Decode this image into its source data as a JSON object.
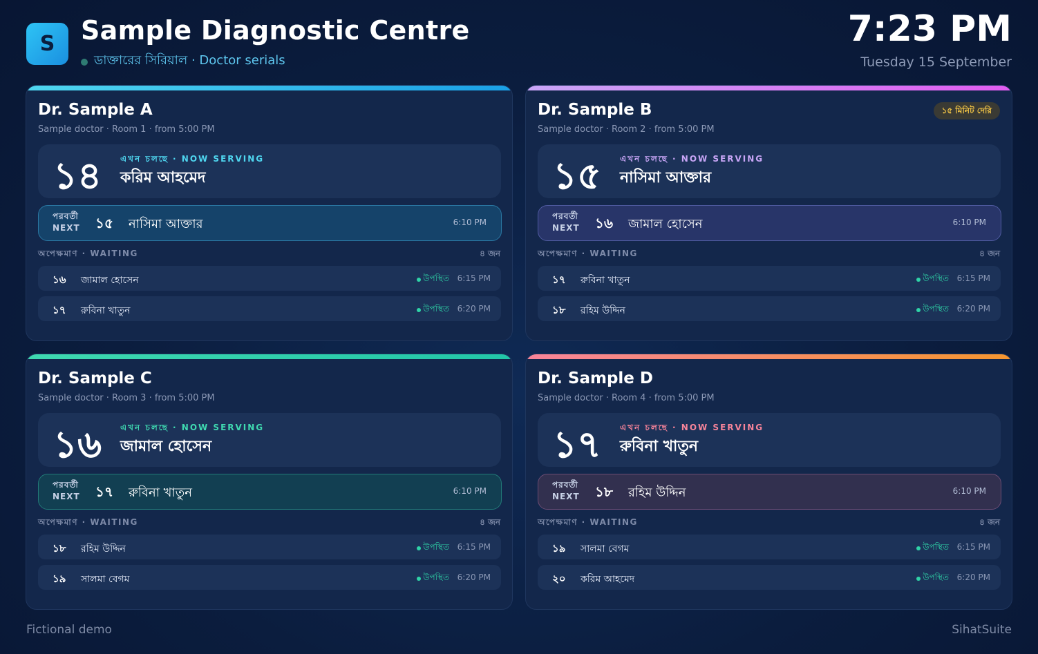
{
  "header": {
    "logo_letter": "S",
    "title": "Sample Diagnostic Centre",
    "subtitle": "ডাক্তারের সিরিয়াল · Doctor serials",
    "time": "7:23 PM",
    "date": "Tuesday 15 September"
  },
  "labels": {
    "now_serving": "এখন চলছে · NOW SERVING",
    "next_bn": "পরবর্তী",
    "next_en": "NEXT",
    "waiting": "অপেক্ষমাণ · WAITING",
    "present": "উপস্থিত"
  },
  "doctors": [
    {
      "name": "Dr. Sample A",
      "meta": "Sample doctor · Room 1 · from 5:00 PM",
      "delay_badge": "",
      "accent": "#4fd6ef",
      "now_number": "১৪",
      "now_name": "করিম আহমেদ",
      "next_number": "১৫",
      "next_name": "নাসিমা আক্তার",
      "next_time": "6:10 PM",
      "waiting_count": "৪ জন",
      "waiting": [
        {
          "number": "১৬",
          "name": "জামাল হোসেন",
          "time": "6:15 PM"
        },
        {
          "number": "১৭",
          "name": "রুবিনা খাতুন",
          "time": "6:20 PM"
        }
      ]
    },
    {
      "name": "Dr. Sample B",
      "meta": "Sample doctor · Room 2 · from 5:00 PM",
      "delay_badge": "১৫ মিনিট দেরি",
      "accent": "#c9a6f7",
      "now_number": "১৫",
      "now_name": "নাসিমা আক্তার",
      "next_number": "১৬",
      "next_name": "জামাল হোসেন",
      "next_time": "6:10 PM",
      "waiting_count": "৪ জন",
      "waiting": [
        {
          "number": "১৭",
          "name": "রুবিনা খাতুন",
          "time": "6:15 PM"
        },
        {
          "number": "১৮",
          "name": "রহিম উদ্দিন",
          "time": "6:20 PM"
        }
      ]
    },
    {
      "name": "Dr. Sample C",
      "meta": "Sample doctor · Room 3 · from 5:00 PM",
      "delay_badge": "",
      "accent": "#3fd9b0",
      "now_number": "১৬",
      "now_name": "জামাল হোসেন",
      "next_number": "১৭",
      "next_name": "রুবিনা খাতুন",
      "next_time": "6:10 PM",
      "waiting_count": "৪ জন",
      "waiting": [
        {
          "number": "১৮",
          "name": "রহিম উদ্দিন",
          "time": "6:15 PM"
        },
        {
          "number": "১৯",
          "name": "সালমা বেগম",
          "time": "6:20 PM"
        }
      ]
    },
    {
      "name": "Dr. Sample D",
      "meta": "Sample doctor · Room 4 · from 5:00 PM",
      "delay_badge": "",
      "accent": "#f7849a",
      "now_number": "১৭",
      "now_name": "রুবিনা খাতুন",
      "next_number": "১৮",
      "next_name": "রহিম উদ্দিন",
      "next_time": "6:10 PM",
      "waiting_count": "৪ জন",
      "waiting": [
        {
          "number": "১৯",
          "name": "সালমা বেগম",
          "time": "6:15 PM"
        },
        {
          "number": "২০",
          "name": "করিম আহমেদ",
          "time": "6:20 PM"
        }
      ]
    }
  ],
  "footer": {
    "left": "Fictional demo",
    "right": "SihatSuite"
  }
}
